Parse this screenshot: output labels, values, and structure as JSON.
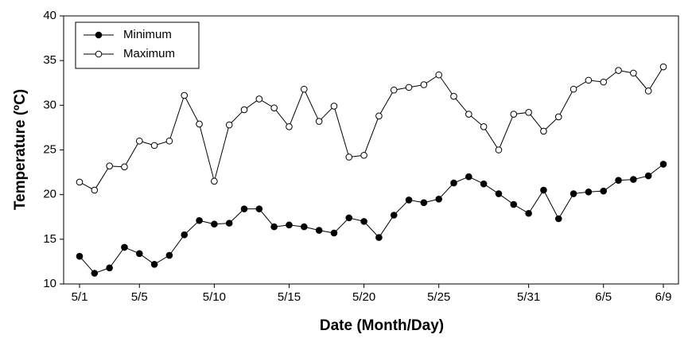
{
  "chart_data": {
    "type": "line",
    "xlabel": "Date (Month/Day)",
    "ylabel": "Temperature (ºC)",
    "categories": [
      "5/1",
      null,
      null,
      null,
      "5/5",
      null,
      null,
      null,
      null,
      "5/10",
      null,
      null,
      null,
      null,
      "5/15",
      null,
      null,
      null,
      null,
      "5/20",
      null,
      null,
      null,
      null,
      "5/25",
      null,
      null,
      null,
      null,
      null,
      "5/31",
      null,
      null,
      null,
      null,
      "6/5",
      null,
      null,
      null,
      "6/9"
    ],
    "series": [
      {
        "name": "Minimum",
        "color": "#000000",
        "marker_fill": "#000000",
        "values": [
          13.1,
          11.2,
          11.8,
          14.1,
          13.4,
          12.2,
          13.2,
          15.5,
          17.1,
          16.7,
          16.8,
          18.4,
          18.4,
          16.4,
          16.6,
          16.4,
          16.0,
          15.7,
          17.4,
          17.0,
          15.2,
          17.7,
          19.4,
          19.1,
          19.5,
          21.3,
          22.0,
          21.2,
          20.1,
          18.9,
          17.9,
          20.5,
          17.3,
          20.1,
          20.3,
          20.4,
          21.6,
          21.7,
          22.1,
          23.4
        ]
      },
      {
        "name": "Maximum",
        "color": "#000000",
        "marker_fill": "#ffffff",
        "values": [
          21.4,
          20.5,
          23.2,
          23.1,
          26.0,
          25.5,
          26.0,
          31.1,
          27.9,
          21.5,
          27.8,
          29.5,
          30.7,
          29.7,
          27.6,
          31.8,
          28.2,
          29.9,
          24.2,
          24.4,
          28.8,
          31.7,
          32.0,
          32.3,
          33.4,
          31.0,
          29.0,
          27.6,
          25.0,
          29.0,
          29.2,
          27.1,
          28.7,
          31.8,
          32.8,
          32.6,
          33.9,
          33.6,
          31.6,
          34.3
        ]
      }
    ],
    "ylim": [
      10,
      40
    ],
    "yticks": [
      10,
      15,
      20,
      25,
      30,
      35,
      40
    ],
    "grid": false,
    "legend": "upper left"
  }
}
